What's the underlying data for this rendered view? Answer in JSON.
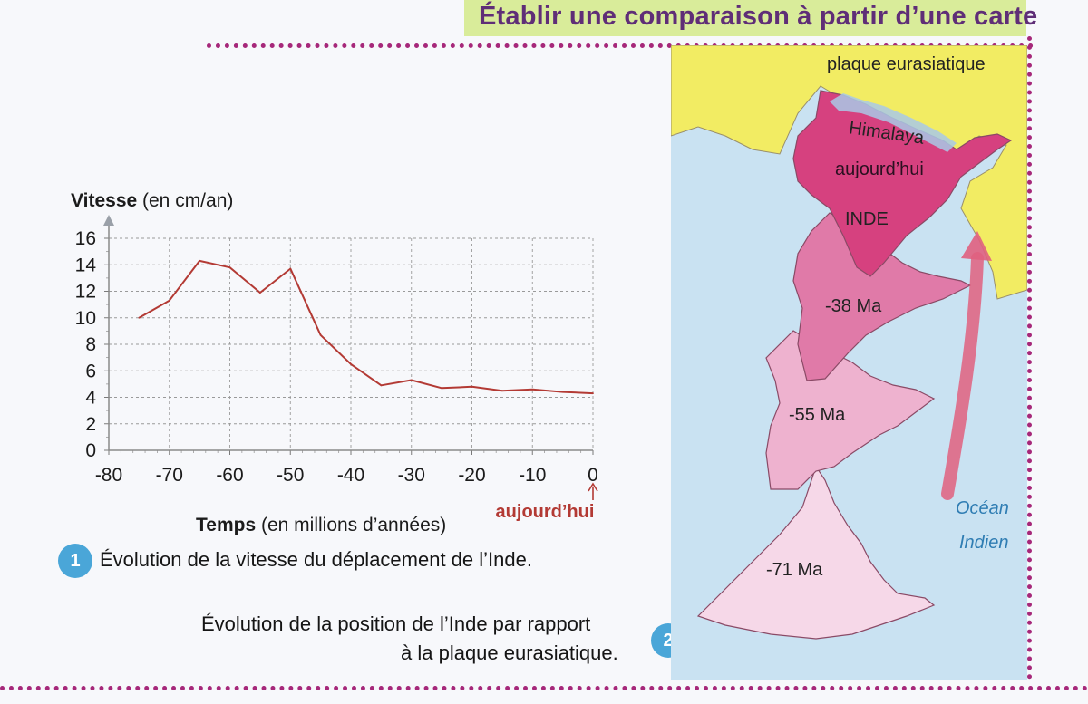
{
  "header": {
    "title": "Établir une comparaison à partir d’une carte"
  },
  "figure1": {
    "badge": "1",
    "caption": "Évolution de la vitesse du déplacement de l’Inde.",
    "today_label": "aujourd’hui"
  },
  "chart_data": {
    "type": "line",
    "ylabel_bold": "Vitesse",
    "ylabel_rest": " (en cm/an)",
    "xlabel_bold": "Temps",
    "xlabel_rest": " (en millions d’années)",
    "xlim": [
      -80,
      0
    ],
    "ylim": [
      0,
      16
    ],
    "xticks": [
      "-80",
      "-70",
      "-60",
      "-50",
      "-40",
      "-30",
      "-20",
      "-10",
      "0"
    ],
    "yticks": [
      "0",
      "2",
      "4",
      "6",
      "8",
      "10",
      "12",
      "14",
      "16"
    ],
    "grid": true,
    "line_color": "#b33a34",
    "x": [
      -75,
      -70,
      -65,
      -60,
      -55,
      -50,
      -45,
      -40,
      -35,
      -30,
      -25,
      -20,
      -15,
      -10,
      -5,
      0
    ],
    "y": [
      10.0,
      11.3,
      14.3,
      13.8,
      11.9,
      13.7,
      8.7,
      6.5,
      4.9,
      5.3,
      4.7,
      4.8,
      4.5,
      4.6,
      4.4,
      4.3
    ]
  },
  "figure2": {
    "badge": "2",
    "caption_line1": "Évolution de la position de l’Inde par rapport",
    "caption_line2": "à la plaque eurasiatique."
  },
  "map": {
    "plate_label": "plaque eurasiatique",
    "mountain_label": "Himalaya",
    "today_label": "aujourd’hui",
    "india_label": "INDE",
    "positions": [
      "-38 Ma",
      "-55 Ma",
      "-71 Ma"
    ],
    "ocean_line1": "Océan",
    "ocean_line2": "Indien",
    "colors": {
      "ocean": "#c9e2f2",
      "plate": "#f2ec63",
      "today": "#d6417f",
      "ma38": "#e07aa8",
      "ma55": "#eeb2cf",
      "ma71": "#f6d8e8",
      "arrow": "#e0607f"
    }
  }
}
